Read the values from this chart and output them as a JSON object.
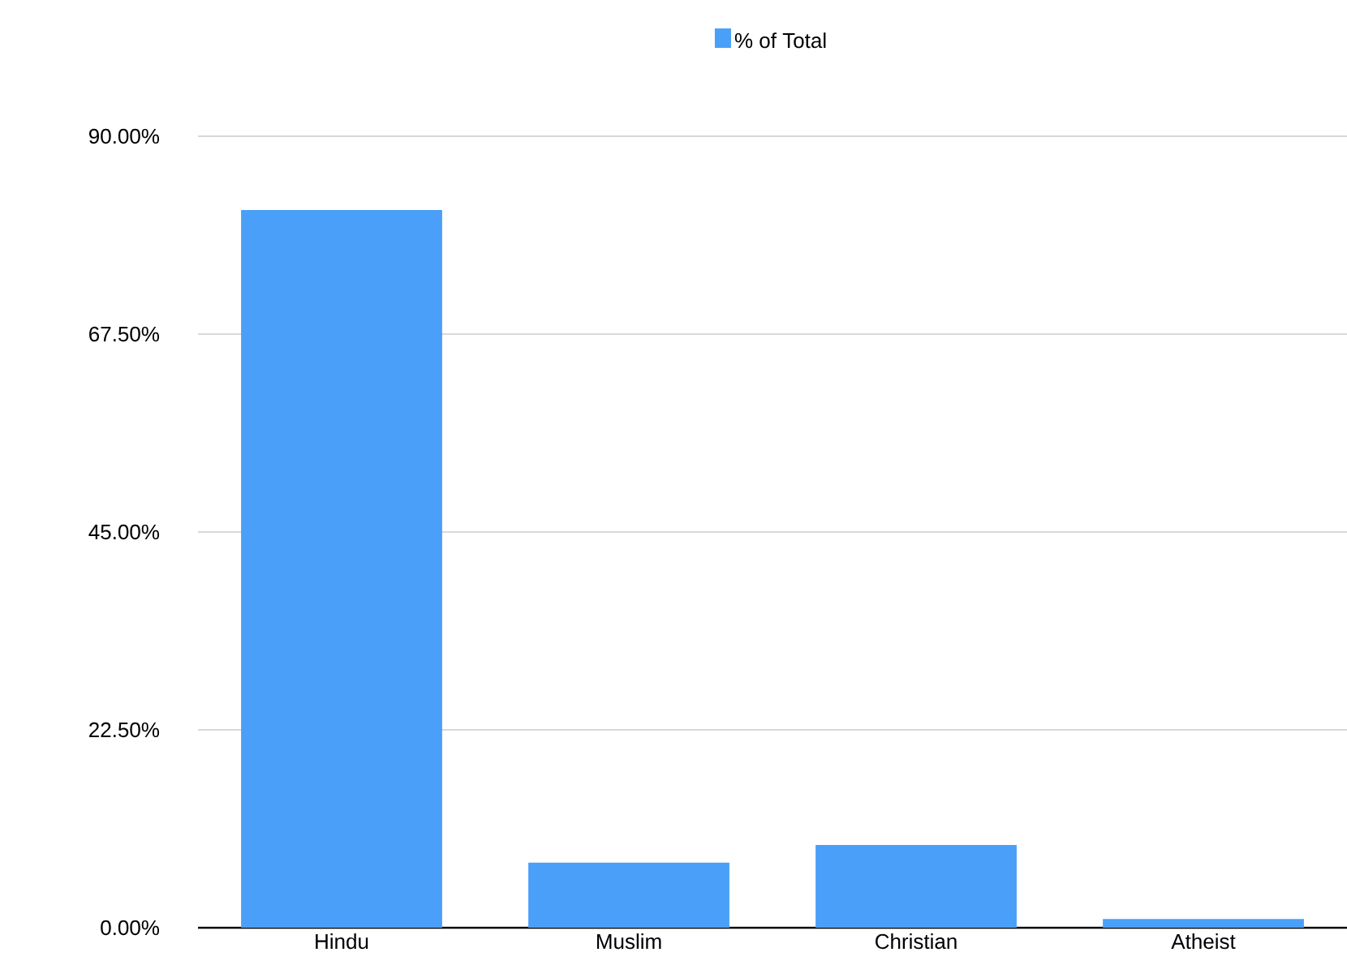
{
  "chart_data": {
    "type": "bar",
    "categories": [
      "Hindu",
      "Muslim",
      "Christian",
      "Atheist"
    ],
    "series": [
      {
        "name": "% of Total",
        "color": "#4a9ff8",
        "values": [
          81.6,
          7.4,
          9.4,
          1.0
        ]
      }
    ],
    "ylim": [
      0,
      90
    ],
    "yticks": [
      {
        "value": 0,
        "label": "0.00%"
      },
      {
        "value": 22.5,
        "label": "22.50%"
      },
      {
        "value": 45,
        "label": "45.00%"
      },
      {
        "value": 67.5,
        "label": "67.50%"
      },
      {
        "value": 90,
        "label": "90.00%"
      }
    ],
    "grid": "y",
    "legend": "top"
  }
}
